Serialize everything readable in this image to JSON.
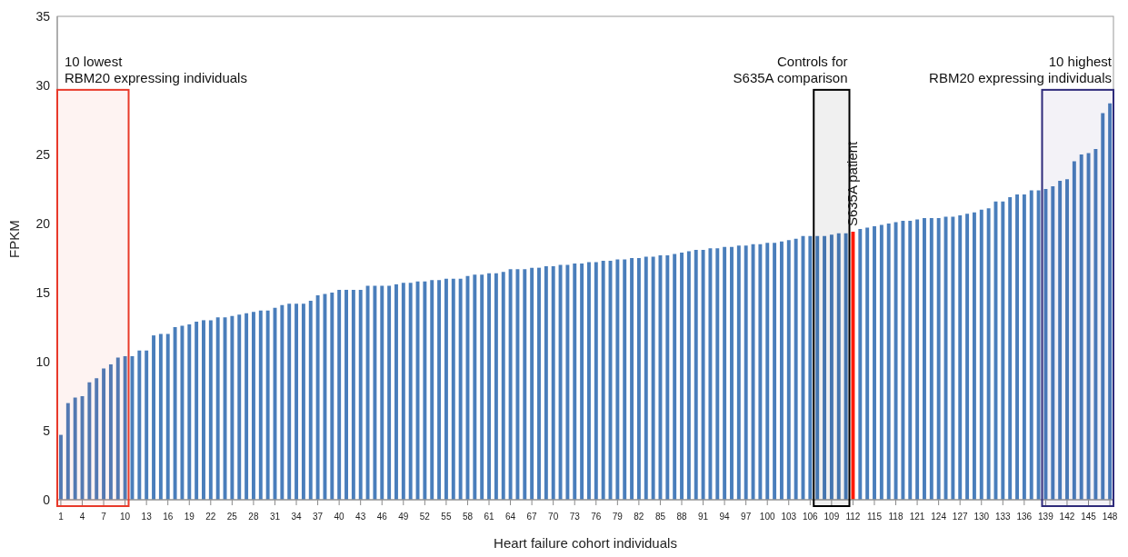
{
  "chart_data": {
    "type": "bar",
    "xlabel": "Heart failure cohort individuals",
    "ylabel": "FPKM",
    "x": [
      1,
      2,
      3,
      4,
      5,
      6,
      7,
      8,
      9,
      10,
      11,
      12,
      13,
      14,
      15,
      16,
      17,
      18,
      19,
      20,
      21,
      22,
      23,
      24,
      25,
      26,
      27,
      28,
      29,
      30,
      31,
      32,
      33,
      34,
      35,
      36,
      37,
      38,
      39,
      40,
      41,
      42,
      43,
      44,
      45,
      46,
      47,
      48,
      49,
      50,
      51,
      52,
      53,
      54,
      55,
      56,
      57,
      58,
      59,
      60,
      61,
      62,
      63,
      64,
      65,
      66,
      67,
      68,
      69,
      70,
      71,
      72,
      73,
      74,
      75,
      76,
      77,
      78,
      79,
      80,
      81,
      82,
      83,
      84,
      85,
      86,
      87,
      88,
      89,
      90,
      91,
      92,
      93,
      94,
      95,
      96,
      97,
      98,
      99,
      100,
      101,
      102,
      103,
      104,
      105,
      106,
      107,
      108,
      109,
      110,
      111,
      112,
      113,
      114,
      115,
      116,
      117,
      118,
      119,
      120,
      121,
      122,
      123,
      124,
      125,
      126,
      127,
      128,
      129,
      130,
      131,
      132,
      133,
      134,
      135,
      136,
      137,
      138,
      139,
      140,
      141,
      142,
      143,
      144,
      145,
      146,
      147,
      148
    ],
    "values": [
      4.7,
      7.0,
      7.4,
      7.5,
      8.5,
      8.8,
      9.5,
      9.8,
      10.3,
      10.4,
      10.4,
      10.8,
      10.8,
      11.9,
      12.0,
      12.0,
      12.5,
      12.6,
      12.7,
      12.9,
      13.0,
      13.0,
      13.2,
      13.2,
      13.3,
      13.4,
      13.5,
      13.6,
      13.7,
      13.7,
      13.9,
      14.1,
      14.2,
      14.2,
      14.2,
      14.4,
      14.8,
      14.9,
      15.0,
      15.2,
      15.2,
      15.2,
      15.2,
      15.5,
      15.5,
      15.5,
      15.5,
      15.6,
      15.7,
      15.7,
      15.8,
      15.8,
      15.9,
      15.9,
      16.0,
      16.0,
      16.0,
      16.2,
      16.3,
      16.3,
      16.4,
      16.4,
      16.5,
      16.7,
      16.7,
      16.7,
      16.8,
      16.8,
      16.9,
      16.9,
      17.0,
      17.0,
      17.1,
      17.1,
      17.2,
      17.2,
      17.3,
      17.3,
      17.4,
      17.4,
      17.5,
      17.5,
      17.6,
      17.6,
      17.7,
      17.7,
      17.8,
      17.9,
      18.0,
      18.1,
      18.1,
      18.2,
      18.2,
      18.3,
      18.3,
      18.4,
      18.4,
      18.5,
      18.5,
      18.6,
      18.6,
      18.7,
      18.8,
      18.9,
      19.1,
      19.1,
      19.1,
      19.1,
      19.2,
      19.3,
      19.3,
      19.4,
      19.6,
      19.7,
      19.8,
      19.9,
      20.0,
      20.1,
      20.2,
      20.2,
      20.3,
      20.4,
      20.4,
      20.4,
      20.5,
      20.5,
      20.6,
      20.7,
      20.8,
      21.0,
      21.1,
      21.6,
      21.6,
      21.9,
      22.1,
      22.1,
      22.4,
      22.4,
      22.5,
      22.7,
      23.1,
      23.2,
      24.5,
      25.0,
      25.1,
      25.4,
      28.0,
      28.7
    ],
    "colors": [
      "#4a7ebb",
      "#4a7ebb",
      "#4a7ebb",
      "#4a7ebb",
      "#4a7ebb",
      "#4a7ebb",
      "#4a7ebb",
      "#4a7ebb",
      "#4a7ebb",
      "#4a7ebb",
      "#4a7ebb",
      "#4a7ebb",
      "#4a7ebb",
      "#4a7ebb",
      "#4a7ebb",
      "#4a7ebb",
      "#4a7ebb",
      "#4a7ebb",
      "#4a7ebb",
      "#4a7ebb",
      "#4a7ebb",
      "#4a7ebb",
      "#4a7ebb",
      "#4a7ebb",
      "#4a7ebb",
      "#4a7ebb",
      "#4a7ebb",
      "#4a7ebb",
      "#4a7ebb",
      "#4a7ebb",
      "#4a7ebb",
      "#4a7ebb",
      "#4a7ebb",
      "#4a7ebb",
      "#4a7ebb",
      "#4a7ebb",
      "#4a7ebb",
      "#4a7ebb",
      "#4a7ebb",
      "#4a7ebb",
      "#4a7ebb",
      "#4a7ebb",
      "#4a7ebb",
      "#4a7ebb",
      "#4a7ebb",
      "#4a7ebb",
      "#4a7ebb",
      "#4a7ebb",
      "#4a7ebb",
      "#4a7ebb",
      "#4a7ebb",
      "#4a7ebb",
      "#4a7ebb",
      "#4a7ebb",
      "#4a7ebb",
      "#4a7ebb",
      "#4a7ebb",
      "#4a7ebb",
      "#4a7ebb",
      "#4a7ebb",
      "#4a7ebb",
      "#4a7ebb",
      "#4a7ebb",
      "#4a7ebb",
      "#4a7ebb",
      "#4a7ebb",
      "#4a7ebb",
      "#4a7ebb",
      "#4a7ebb",
      "#4a7ebb",
      "#4a7ebb",
      "#4a7ebb",
      "#4a7ebb",
      "#4a7ebb",
      "#4a7ebb",
      "#4a7ebb",
      "#4a7ebb",
      "#4a7ebb",
      "#4a7ebb",
      "#4a7ebb",
      "#4a7ebb",
      "#4a7ebb",
      "#4a7ebb",
      "#4a7ebb",
      "#4a7ebb",
      "#4a7ebb",
      "#4a7ebb",
      "#4a7ebb",
      "#4a7ebb",
      "#4a7ebb",
      "#4a7ebb",
      "#4a7ebb",
      "#4a7ebb",
      "#4a7ebb",
      "#4a7ebb",
      "#4a7ebb",
      "#4a7ebb",
      "#4a7ebb",
      "#4a7ebb",
      "#4a7ebb",
      "#4a7ebb",
      "#4a7ebb",
      "#4a7ebb",
      "#4a7ebb",
      "#4a7ebb",
      "#4a7ebb",
      "#4a7ebb",
      "#4a7ebb",
      "#4a7ebb",
      "#4a7ebb",
      "#4a7ebb",
      "#ff1a00",
      "#4a7ebb",
      "#4a7ebb",
      "#4a7ebb",
      "#4a7ebb",
      "#4a7ebb",
      "#4a7ebb",
      "#4a7ebb",
      "#4a7ebb",
      "#4a7ebb",
      "#4a7ebb",
      "#4a7ebb",
      "#4a7ebb",
      "#4a7ebb",
      "#4a7ebb",
      "#4a7ebb",
      "#4a7ebb",
      "#4a7ebb",
      "#4a7ebb",
      "#4a7ebb",
      "#4a7ebb",
      "#4a7ebb",
      "#4a7ebb",
      "#4a7ebb",
      "#4a7ebb",
      "#4a7ebb",
      "#4a7ebb",
      "#4a7ebb",
      "#4a7ebb",
      "#4a7ebb",
      "#4a7ebb",
      "#4a7ebb",
      "#4a7ebb",
      "#4a7ebb",
      "#4a7ebb",
      "#4a7ebb",
      "#4a7ebb"
    ],
    "xlim": [
      0.5,
      148.5
    ],
    "xticks": [
      1,
      4,
      7,
      10,
      13,
      16,
      19,
      22,
      25,
      28,
      31,
      34,
      37,
      40,
      43,
      46,
      49,
      52,
      55,
      58,
      61,
      64,
      67,
      70,
      73,
      76,
      79,
      82,
      85,
      88,
      91,
      94,
      97,
      100,
      103,
      106,
      109,
      112,
      115,
      118,
      121,
      124,
      127,
      130,
      133,
      136,
      139,
      142,
      145,
      148
    ],
    "ylim": [
      0,
      35
    ],
    "yticks": [
      0,
      5,
      10,
      15,
      20,
      25,
      30,
      35
    ],
    "bands": [
      {
        "axis": "x",
        "from": 0.5,
        "to": 10.5,
        "label": "10 lowest\nRBM20 expressing individuals",
        "color": "#e8392a"
      },
      {
        "axis": "x",
        "from": 106.5,
        "to": 111.5,
        "label": "Controls for\nS635A comparison",
        "color": "#000000"
      },
      {
        "axis": "x",
        "from": 138.5,
        "to": 148.5,
        "label": "10 highest\nRBM20 expressing individuals",
        "color": "#2e2a7a"
      }
    ],
    "annotations": [
      {
        "text": "S635A patient",
        "x": 112,
        "y": 19.4
      }
    ],
    "grid": false,
    "legend": false
  }
}
